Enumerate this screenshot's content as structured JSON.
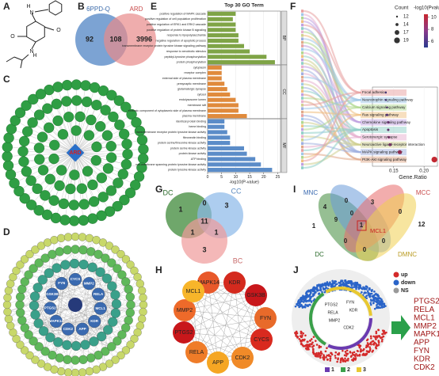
{
  "panel_labels": [
    "A",
    "B",
    "C",
    "D",
    "E",
    "F",
    "G",
    "H",
    "I",
    "J"
  ],
  "panel_a": {
    "labels": [
      "H",
      "N",
      "O",
      "O",
      "N",
      "H"
    ]
  },
  "panel_b": {
    "sets": [
      "6PPD-Q",
      "ARD"
    ],
    "counts": [
      92,
      108,
      3996
    ]
  },
  "panel_c": {
    "center": "ARD"
  },
  "panel_d": {
    "genes": [
      "PTGS2",
      "GSK3B",
      "FYN",
      "CYCS",
      "MMP2",
      "RELA",
      "MCL1",
      "KDR",
      "APP",
      "CDK2",
      "MAPK14"
    ]
  },
  "chart_data": [
    {
      "type": "bar",
      "title": "Top 30 GO Term",
      "x_label": "-log10(P-value)",
      "xlim": [
        0,
        26
      ],
      "xticks": [
        0,
        5,
        10,
        15,
        20,
        25
      ],
      "groups": [
        {
          "name": "BP",
          "color": "#7fa446",
          "categories": [
            "positive regulation of MAPK cascade",
            "positive regulation of cell population proliferation",
            "positive regulation of ERK1 and ERK2 cascade",
            "positive regulation of protein kinase B signaling",
            "response to lipopolysaccharide",
            "negative regulation of apoptotic process",
            "transmembrane receptor protein tyrosine kinase signaling pathway",
            "response to xenobiotic stimulus",
            "peptidyl-tyrosine phosphorylation",
            "protein phosphorylation"
          ],
          "values": [
            10,
            9,
            10,
            10,
            11,
            11,
            13,
            15,
            21,
            24
          ]
        },
        {
          "name": "CC",
          "color": "#e08a3c",
          "categories": [
            "cytoplasm",
            "receptor complex",
            "external side of plasma membrane",
            "presynaptic membrane",
            "glutamatergic synapse",
            "cytosol",
            "endolysosome lumen",
            "membrane raft",
            "extrinsic component of cytoplasmic side of plasma membrane",
            "plasma membrane"
          ],
          "values": [
            5,
            5,
            5,
            6,
            7,
            8,
            10,
            11,
            11,
            14
          ]
        },
        {
          "name": "MF",
          "color": "#5b8cc8",
          "categories": [
            "identical protein binding",
            "heme binding",
            "transmembrane receptor protein tyrosine kinase activity",
            "fibronectin binding",
            "protein serine/threonine kinase activity",
            "protein serine kinase activity",
            "protein kinase activity",
            "ATP binding",
            "non-membrane spanning protein tyrosine kinase activity",
            "protein tyrosine kinase activity"
          ],
          "values": [
            6,
            6,
            7,
            8,
            8,
            13,
            14,
            17,
            19,
            23
          ]
        }
      ]
    },
    {
      "type": "scatter",
      "x_label": "Gene.Ratio",
      "categories": [
        "Focal adhesion",
        "Neurotrophin signaling pathway",
        "Calcium signaling pathway",
        "Ras signaling pathway",
        "Chemokine signaling pathway",
        "Apoptosis",
        "Serotonergic synapse",
        "Neuroactive ligand-receptor interaction",
        "MAPK signaling pathway",
        "PI3K-Akt signaling pathway"
      ],
      "x": [
        0.137,
        0.137,
        0.139,
        0.139,
        0.141,
        0.141,
        0.142,
        0.144,
        0.16,
        0.217
      ],
      "count": [
        12,
        12,
        12,
        13,
        13,
        13,
        13,
        14,
        16,
        19
      ],
      "pvalue": [
        6,
        6,
        6.5,
        6.5,
        7,
        7,
        7.5,
        7.5,
        8.5,
        10.3
      ],
      "xlim": [
        0.115,
        0.222
      ],
      "xticks": [
        0.15,
        {
          "value": 0.2,
          "label": "0.20"
        }
      ],
      "size_legend": {
        "title": "Count",
        "values": [
          12,
          14,
          17,
          19
        ]
      },
      "color_legend": {
        "title": "-log10(Pvalue)",
        "ticks": [
          10,
          8,
          6
        ],
        "clim": [
          5,
          10.5
        ],
        "low_color": "#2b3a8f",
        "high_color": "#c8262d"
      }
    }
  ],
  "panel_g": {
    "sets": [
      "DC",
      "CC",
      "BC"
    ],
    "counts": [
      1,
      0,
      3,
      11,
      1,
      1,
      3
    ]
  },
  "panel_h": {
    "genes": [
      "MAPK14",
      "KDR",
      "GSK3B",
      "FYN",
      "CYCS",
      "CDK2",
      "APP",
      "RELA",
      "PTGS2",
      "MMP2",
      "MCL1"
    ],
    "colors": [
      "#e8582a",
      "#d42a1e",
      "#c8171b",
      "#e86a2a",
      "#d92a1f",
      "#f08a28",
      "#f5a623",
      "#ef7c28",
      "#c8171b",
      "#ee6a2a",
      "#f7b52a"
    ]
  },
  "panel_i": {
    "sets": [
      "MNC",
      "MCC",
      "DC",
      "DMNC"
    ],
    "counts": [
      4,
      0,
      3,
      12,
      1,
      9,
      0,
      1,
      0,
      0,
      0,
      0
    ],
    "hub": "MCL1"
  },
  "panel_j": {
    "legend": [
      "up",
      "down",
      "NS"
    ],
    "clusters": [
      "1",
      "2",
      "3"
    ],
    "labels": [
      "PTGS2",
      "RELA",
      "MMP2",
      "FYN",
      "KDR",
      "CDK2"
    ],
    "genes": [
      "PTGS2",
      "RELA",
      "MCL1",
      "MMP2",
      "MAPK14",
      "APP",
      "FYN",
      "KDR",
      "CDK2"
    ]
  }
}
